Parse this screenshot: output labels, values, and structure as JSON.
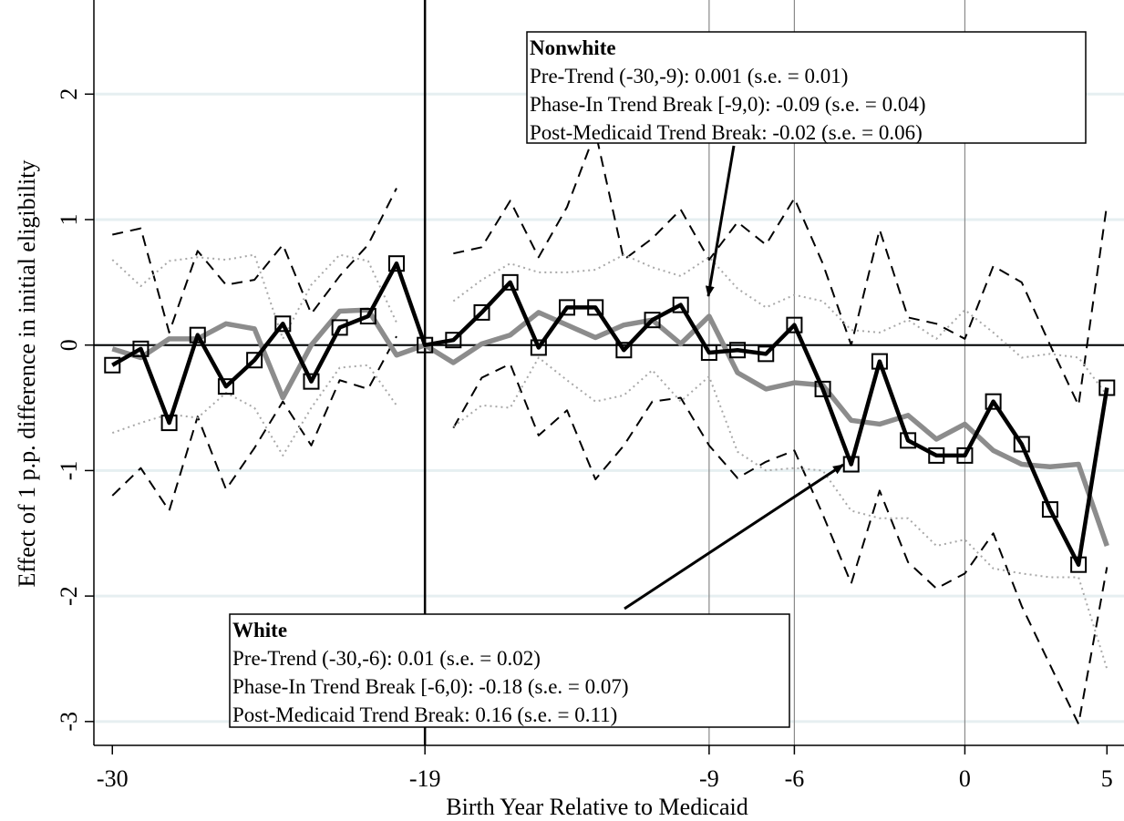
{
  "chart_data": {
    "type": "line",
    "x_label": "Birth Year Relative to Medicaid",
    "y_label": "Effect of 1 p.p. difference in initial eligibility",
    "x": [
      -30,
      -29,
      -28,
      -27,
      -26,
      -25,
      -24,
      -23,
      -22,
      -21,
      -20,
      -19,
      -18,
      -17,
      -16,
      -15,
      -14,
      -13,
      -12,
      -11,
      -10,
      -9,
      -8,
      -7,
      -6,
      -5,
      -4,
      -3,
      -2,
      -1,
      0,
      1,
      2,
      3,
      4,
      5
    ],
    "xlim": [
      -30.65,
      5.6
    ],
    "ylim": [
      -3.19,
      2.75
    ],
    "xticks": [
      -30,
      -19,
      -9,
      -6,
      0,
      5
    ],
    "yticks": [
      -3,
      -2,
      -1,
      0,
      1,
      2
    ],
    "grid": true,
    "hline": 0,
    "xlines": [
      {
        "value": -19,
        "color": "#000000"
      },
      {
        "value": -9,
        "color": "#8a8a8a"
      },
      {
        "value": -6,
        "color": "#8a8a8a"
      },
      {
        "value": 0,
        "color": "#8a8a8a"
      }
    ],
    "series": [
      {
        "color": "#000000",
        "style": "dashed",
        "values": [
          0.88,
          0.93,
          0.1,
          0.75,
          0.48,
          0.52,
          0.8,
          0.25,
          0.55,
          0.8,
          1.25,
          null,
          0.73,
          0.78,
          1.15,
          0.7,
          1.1,
          1.7,
          0.68,
          0.85,
          1.08,
          0.68,
          0.98,
          0.8,
          1.17,
          0.65,
          0.0,
          0.92,
          0.22,
          0.17,
          0.05,
          0.63,
          0.5,
          0.0,
          -0.48,
          1.12
        ]
      },
      {
        "color": "#000000",
        "style": "dashed",
        "values": [
          -1.2,
          -0.98,
          -1.32,
          -0.57,
          -1.15,
          -0.82,
          -0.45,
          -0.8,
          -0.28,
          -0.35,
          0.07,
          null,
          -0.66,
          -0.26,
          -0.15,
          -0.72,
          -0.52,
          -1.07,
          -0.8,
          -0.45,
          -0.42,
          -0.8,
          -1.06,
          -0.93,
          -0.84,
          -1.35,
          -1.9,
          -1.16,
          -1.73,
          -1.94,
          -1.82,
          -1.5,
          -2.08,
          -2.55,
          -3.02,
          -1.77
        ]
      },
      {
        "color": "#a8a8a8",
        "style": "dotted",
        "values": [
          0.68,
          0.47,
          0.67,
          0.7,
          0.68,
          0.72,
          0.05,
          0.48,
          0.72,
          0.67,
          0.18,
          null,
          0.35,
          0.52,
          0.65,
          0.58,
          0.58,
          0.6,
          0.72,
          0.62,
          0.55,
          0.7,
          0.45,
          0.3,
          0.4,
          0.35,
          0.12,
          0.1,
          0.2,
          0.05,
          0.28,
          0.1,
          -0.1,
          -0.07,
          -0.1,
          -0.4
        ]
      },
      {
        "color": "#a8a8a8",
        "style": "dotted",
        "values": [
          -0.7,
          -0.62,
          -0.55,
          -0.58,
          -0.38,
          -0.5,
          -0.88,
          -0.5,
          -0.18,
          -0.16,
          -0.48,
          null,
          -0.65,
          -0.48,
          -0.5,
          -0.1,
          -0.28,
          -0.45,
          -0.4,
          -0.2,
          -0.45,
          -0.25,
          -0.85,
          -1.0,
          -0.98,
          -1.0,
          -1.32,
          -1.38,
          -1.38,
          -1.6,
          -1.55,
          -1.78,
          -1.82,
          -1.85,
          -1.85,
          -2.58
        ]
      },
      {
        "color": "#8c8c8c",
        "style": "thick",
        "values": [
          -0.03,
          -0.1,
          0.05,
          0.05,
          0.17,
          0.13,
          -0.42,
          0.0,
          0.27,
          0.28,
          -0.08,
          0.0,
          -0.14,
          0.01,
          0.08,
          0.26,
          0.16,
          0.06,
          0.16,
          0.2,
          0.01,
          0.23,
          -0.22,
          -0.35,
          -0.3,
          -0.32,
          -0.6,
          -0.63,
          -0.56,
          -0.75,
          -0.63,
          -0.84,
          -0.95,
          -0.97,
          -0.95,
          -1.6
        ]
      },
      {
        "color": "#000000",
        "style": "markers",
        "values": [
          -0.16,
          -0.03,
          -0.62,
          0.08,
          -0.33,
          -0.12,
          0.17,
          -0.29,
          0.14,
          0.23,
          0.65,
          0.0,
          0.04,
          0.26,
          0.5,
          -0.02,
          0.3,
          0.3,
          -0.04,
          0.2,
          0.32,
          -0.06,
          -0.04,
          -0.07,
          0.16,
          -0.35,
          -0.95,
          -0.13,
          -0.76,
          -0.88,
          -0.88,
          -0.45,
          -0.79,
          -1.31,
          -1.75,
          -0.34
        ]
      }
    ],
    "annotations": [
      {
        "title": "Nonwhite",
        "lines": [
          "Pre-Trend (-30,-9): 0.001 (s.e. = 0.01)",
          "Phase-In Trend Break [-9,0): -0.09 (s.e. = 0.04)",
          "Post-Medicaid Trend Break: -0.02 (s.e. = 0.06)"
        ]
      },
      {
        "title": "White",
        "lines": [
          "Pre-Trend (-30,-6): 0.01 (s.e. = 0.02)",
          "Phase-In Trend Break [-6,0): -0.18 (s.e. = 0.07)",
          "Post-Medicaid Trend Break: 0.16 (s.e. = 0.11)"
        ]
      }
    ]
  }
}
